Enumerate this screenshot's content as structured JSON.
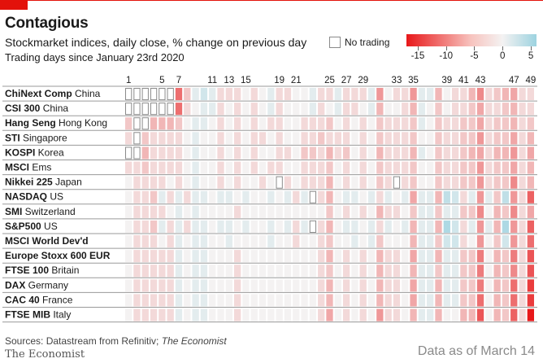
{
  "header": {
    "title": "Contagious",
    "subtitle": "Stockmarket indices, daily close, % change on previous day",
    "subtitle2": "Trading days since January 23rd 2020"
  },
  "legend": {
    "no_trading_label": "No trading",
    "ticks": [
      "-15",
      "-10",
      "-5",
      "0",
      "5"
    ],
    "tick_values": [
      -15,
      -10,
      -5,
      0,
      5
    ],
    "range": [
      -17,
      6
    ],
    "colors": {
      "neg_extreme": "#e8181a",
      "neutral": "#f4f2f2",
      "pos_extreme": "#9dd3e0",
      "no_trading_border": "#8a8a8a"
    }
  },
  "chart_data": {
    "type": "heatmap",
    "title": "Contagious",
    "xlabel": "Trading days since January 23rd 2020",
    "ylabel": "",
    "x_tick_labels": [
      "1",
      "5",
      "7",
      "11",
      "13",
      "15",
      "19",
      "21",
      "25",
      "27",
      "29",
      "33",
      "35",
      "39",
      "41",
      "43",
      "47",
      "49"
    ],
    "x_tick_days": [
      1,
      5,
      7,
      11,
      13,
      15,
      19,
      21,
      25,
      27,
      29,
      33,
      35,
      39,
      41,
      43,
      47,
      49
    ],
    "x_tick_labels_full": [
      "1",
      "",
      "",
      "5",
      "",
      "7",
      "",
      "",
      "",
      "11",
      "",
      "13",
      "",
      "15",
      "",
      "",
      "",
      "19",
      "",
      "21",
      "",
      "",
      "",
      "25",
      "",
      "27",
      "",
      "29",
      "",
      "",
      "",
      "33",
      "",
      "35",
      "",
      "",
      "",
      "39",
      "",
      "41",
      "",
      "43",
      "",
      "",
      "",
      "47",
      "",
      "49",
      ""
    ],
    "days": 49,
    "unit": "% change on previous day",
    "no_trading_value": null,
    "rows": [
      {
        "name": "ChiNext Comp",
        "country": "China",
        "values": [
          null,
          null,
          null,
          null,
          null,
          null,
          -8,
          -2,
          1,
          2,
          1,
          -1,
          -1,
          -1,
          0,
          -1,
          0,
          1,
          -1,
          -1,
          0,
          0,
          1,
          -1,
          -1,
          1,
          -1,
          -1,
          -1,
          1,
          -5,
          0,
          -1,
          -1,
          -5,
          1,
          1,
          -3,
          0,
          -1,
          -1,
          -3,
          -6,
          -1,
          -2,
          -3,
          -4,
          -1,
          -1
        ]
      },
      {
        "name": "CSI 300",
        "country": "China",
        "values": [
          null,
          null,
          null,
          null,
          null,
          null,
          -8,
          -1,
          0,
          1,
          1,
          -1,
          0,
          -1,
          0,
          -1,
          0,
          1,
          -1,
          0,
          0,
          0,
          1,
          -1,
          0,
          1,
          -1,
          -1,
          0,
          1,
          -3,
          0,
          0,
          -1,
          -3,
          1,
          0,
          -2,
          0,
          -1,
          -1,
          -2,
          -4,
          -1,
          -1,
          -2,
          -3,
          -1,
          -1
        ]
      },
      {
        "name": "Hang Seng",
        "country": "Hong Kong",
        "values": [
          -2,
          null,
          null,
          -3,
          -3,
          -3,
          -2,
          0,
          1,
          1,
          0,
          -1,
          0,
          -1,
          0,
          -1,
          0,
          -1,
          -1,
          0,
          0,
          -1,
          -1,
          -1,
          -2,
          0,
          -1,
          0,
          -1,
          0,
          -2,
          -1,
          -1,
          -1,
          -2,
          1,
          0,
          -2,
          -1,
          -1,
          -2,
          -2,
          -4,
          -1,
          -2,
          -2,
          -3,
          -1,
          -2
        ]
      },
      {
        "name": "STI",
        "country": "Singapore",
        "values": [
          -1,
          null,
          -2,
          -1,
          -1,
          -1,
          -1,
          0,
          1,
          0,
          0,
          -1,
          0,
          -1,
          0,
          -1,
          -1,
          0,
          -1,
          0,
          0,
          -1,
          -1,
          -2,
          -1,
          -1,
          -1,
          0,
          -1,
          0,
          -2,
          -1,
          -1,
          -1,
          -2,
          0,
          0,
          -2,
          -1,
          -1,
          -2,
          -2,
          -5,
          -1,
          -2,
          -2,
          -4,
          -1,
          -3
        ]
      },
      {
        "name": "KOSPI",
        "country": "Korea",
        "values": [
          null,
          null,
          -3,
          -1,
          -1,
          -1,
          -1,
          0,
          1,
          0,
          0,
          -1,
          0,
          -1,
          0,
          -1,
          0,
          0,
          -1,
          -1,
          0,
          -2,
          -2,
          -1,
          -3,
          -1,
          -2,
          0,
          -1,
          0,
          -3,
          -1,
          -1,
          -1,
          -3,
          1,
          0,
          -2,
          -1,
          -1,
          -2,
          -3,
          -4,
          -1,
          -3,
          -3,
          -5,
          -1,
          -4
        ]
      },
      {
        "name": "MSCI",
        "country": "Ems",
        "values": [
          -1,
          -1,
          -2,
          -1,
          -1,
          -1,
          -1,
          0,
          1,
          0,
          0,
          -1,
          0,
          -1,
          0,
          -1,
          0,
          -1,
          -1,
          0,
          0,
          -1,
          -1,
          -1,
          -2,
          0,
          -1,
          0,
          -1,
          0,
          -2,
          -1,
          -1,
          -1,
          -2,
          0,
          0,
          -2,
          -1,
          -1,
          -2,
          -2,
          -5,
          -1,
          -2,
          -2,
          -4,
          -1,
          -3
        ]
      },
      {
        "name": "Nikkei 225",
        "country": "Japan",
        "values": [
          0,
          -1,
          -1,
          -1,
          -1,
          0,
          -1,
          0,
          1,
          0,
          0,
          -1,
          0,
          -1,
          0,
          0,
          -1,
          0,
          null,
          -1,
          0,
          -1,
          -1,
          -1,
          -3,
          0,
          -1,
          0,
          -1,
          0,
          -2,
          -1,
          null,
          -1,
          -2,
          0,
          0,
          -2,
          -1,
          -1,
          -2,
          -2,
          -5,
          -1,
          -2,
          -2,
          -6,
          -1,
          -3
        ]
      },
      {
        "name": "NASDAQ",
        "country": "US",
        "values": [
          0,
          -1,
          -1,
          -2,
          1,
          -1,
          1,
          -1,
          1,
          1,
          0,
          1,
          1,
          0,
          1,
          0,
          0,
          1,
          0,
          1,
          -1,
          1,
          null,
          -1,
          -3,
          0,
          1,
          1,
          0,
          1,
          -1,
          1,
          0,
          1,
          -4,
          1,
          1,
          -3,
          3,
          2,
          -1,
          1,
          -5,
          1,
          -2,
          3,
          -5,
          -1,
          -9
        ]
      },
      {
        "name": "SMI",
        "country": "Switzerland",
        "values": [
          0,
          -1,
          -1,
          -1,
          -1,
          0,
          1,
          0,
          1,
          0,
          0,
          0,
          0,
          -1,
          0,
          0,
          0,
          0,
          0,
          0,
          0,
          0,
          0,
          0,
          -2,
          0,
          -1,
          0,
          -1,
          0,
          -3,
          -1,
          -1,
          0,
          -2,
          1,
          1,
          -2,
          1,
          1,
          -2,
          -2,
          -6,
          0,
          -3,
          -2,
          -6,
          -1,
          -4
        ]
      },
      {
        "name": "S&P500",
        "country": "US",
        "values": [
          0,
          -1,
          -1,
          -2,
          1,
          -1,
          1,
          -1,
          1,
          1,
          0,
          1,
          1,
          0,
          1,
          0,
          0,
          1,
          0,
          1,
          -1,
          1,
          null,
          -1,
          -3,
          0,
          1,
          1,
          0,
          1,
          -1,
          1,
          0,
          1,
          -3,
          1,
          1,
          -3,
          4,
          2,
          -1,
          1,
          -5,
          1,
          -3,
          4,
          -5,
          -1,
          -9
        ]
      },
      {
        "name": "MSCI World Dev'd",
        "country": "",
        "values": [
          0,
          -1,
          -1,
          -1,
          0,
          -1,
          1,
          0,
          1,
          1,
          0,
          0,
          1,
          0,
          0,
          0,
          0,
          1,
          0,
          0,
          -1,
          0,
          0,
          -1,
          -2,
          0,
          0,
          1,
          0,
          1,
          -2,
          0,
          0,
          0,
          -3,
          1,
          1,
          -2,
          2,
          2,
          -1,
          0,
          -5,
          0,
          -2,
          2,
          -5,
          -1,
          -8
        ]
      },
      {
        "name": "Europe Stoxx 600 EUR",
        "country": "",
        "values": [
          0,
          -1,
          -1,
          -1,
          -1,
          -1,
          1,
          0,
          1,
          1,
          0,
          0,
          0,
          -1,
          0,
          0,
          0,
          0,
          0,
          0,
          0,
          0,
          0,
          -1,
          -3,
          0,
          -1,
          0,
          -1,
          0,
          -3,
          -1,
          -1,
          0,
          -4,
          1,
          1,
          -3,
          1,
          1,
          -2,
          -2,
          -7,
          0,
          -3,
          -2,
          -7,
          -1,
          -10
        ]
      },
      {
        "name": "FTSE 100",
        "country": "Britain",
        "values": [
          0,
          -1,
          -1,
          -1,
          -1,
          -1,
          1,
          0,
          1,
          1,
          0,
          0,
          0,
          -1,
          0,
          0,
          0,
          0,
          0,
          0,
          0,
          0,
          0,
          -1,
          -2,
          0,
          -1,
          0,
          -1,
          0,
          -3,
          -1,
          -1,
          0,
          -3,
          1,
          1,
          -2,
          1,
          1,
          -2,
          -2,
          -7,
          0,
          -3,
          -2,
          -6,
          -1,
          -10
        ]
      },
      {
        "name": "DAX",
        "country": "Germany",
        "values": [
          0,
          -1,
          -1,
          -1,
          -1,
          -1,
          1,
          0,
          1,
          1,
          0,
          0,
          0,
          -1,
          0,
          0,
          0,
          0,
          0,
          0,
          0,
          0,
          0,
          -1,
          -3,
          0,
          -1,
          0,
          -1,
          0,
          -3,
          -1,
          -1,
          0,
          -4,
          1,
          1,
          -3,
          1,
          1,
          -2,
          -2,
          -7,
          0,
          -3,
          -2,
          -8,
          -1,
          -12
        ]
      },
      {
        "name": "CAC 40",
        "country": "France",
        "values": [
          0,
          -1,
          -1,
          -1,
          -1,
          -1,
          1,
          0,
          1,
          1,
          0,
          0,
          0,
          -1,
          0,
          0,
          0,
          0,
          0,
          0,
          0,
          0,
          0,
          -1,
          -3,
          0,
          -1,
          0,
          -1,
          0,
          -3,
          -1,
          -1,
          0,
          -4,
          1,
          1,
          -3,
          1,
          1,
          -2,
          -2,
          -8,
          0,
          -3,
          -2,
          -8,
          -1,
          -12
        ]
      },
      {
        "name": "FTSE MIB",
        "country": "Italy",
        "values": [
          0,
          -1,
          -1,
          -1,
          -1,
          -1,
          1,
          0,
          1,
          1,
          0,
          0,
          0,
          -1,
          0,
          0,
          0,
          0,
          0,
          0,
          0,
          0,
          0,
          -1,
          -4,
          0,
          -1,
          0,
          -1,
          0,
          -5,
          -1,
          -1,
          0,
          -3,
          1,
          1,
          -3,
          0,
          0,
          -3,
          -3,
          -10,
          0,
          -3,
          -2,
          -9,
          -1,
          -17
        ]
      }
    ]
  },
  "footer": {
    "source_prefix": "Sources: Datastream from Refinitiv; ",
    "source_italic": "The Economist",
    "logo": "The Economist",
    "as_of": "Data as of March 14"
  }
}
